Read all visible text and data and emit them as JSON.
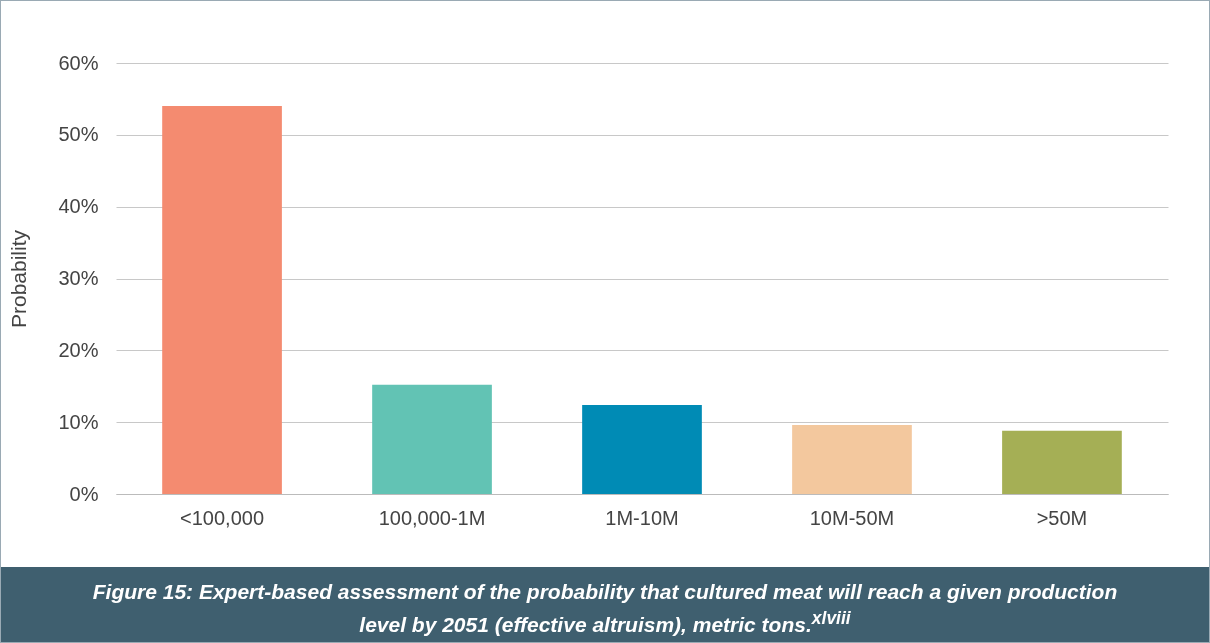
{
  "chart_data": {
    "type": "bar",
    "title": "Figure 15: Expert-based assessment of the probability that cultured meat will reach a given production level by 2051 (effective altruism), metric tons.$^{xlviii}$",
    "ylabel": "Probability",
    "categories": [
      "<100,000",
      "100,000-1M",
      "1M-10M",
      "10M-50M",
      ">50M"
    ],
    "values": [
      54,
      15.2,
      12.4,
      9.6,
      8.8
    ],
    "colors": [
      "#f48b70",
      "#62c3b4",
      "#008bb5",
      "#f3c89e",
      "#a5af55"
    ],
    "ylim": [
      0,
      60
    ],
    "yticks": [
      {
        "value": 0,
        "label": "0%"
      },
      {
        "value": 10,
        "label": "10%"
      },
      {
        "value": 20,
        "label": "20%"
      },
      {
        "value": 30,
        "label": "30%"
      },
      {
        "value": 40,
        "label": "40%"
      },
      {
        "value": 50,
        "label": "50%"
      },
      {
        "value": 60,
        "label": "60%"
      }
    ],
    "grid": "y"
  }
}
